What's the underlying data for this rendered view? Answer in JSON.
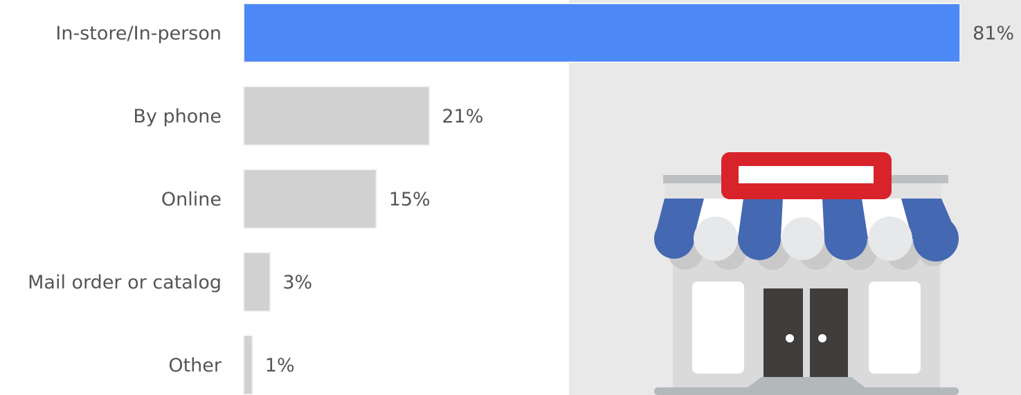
{
  "chart_data": {
    "type": "bar",
    "orientation": "horizontal",
    "categories": [
      "In-store/In-person",
      "By phone",
      "Online",
      "Mail order or catalog",
      "Other"
    ],
    "values": [
      81,
      21,
      15,
      3,
      1
    ],
    "value_labels": [
      "81%",
      "21%",
      "15%",
      "3%",
      "1%"
    ],
    "colors": [
      "#4d8af7",
      "#d1d1d1",
      "#d1d1d1",
      "#d1d1d1",
      "#d1d1d1"
    ]
  }
}
